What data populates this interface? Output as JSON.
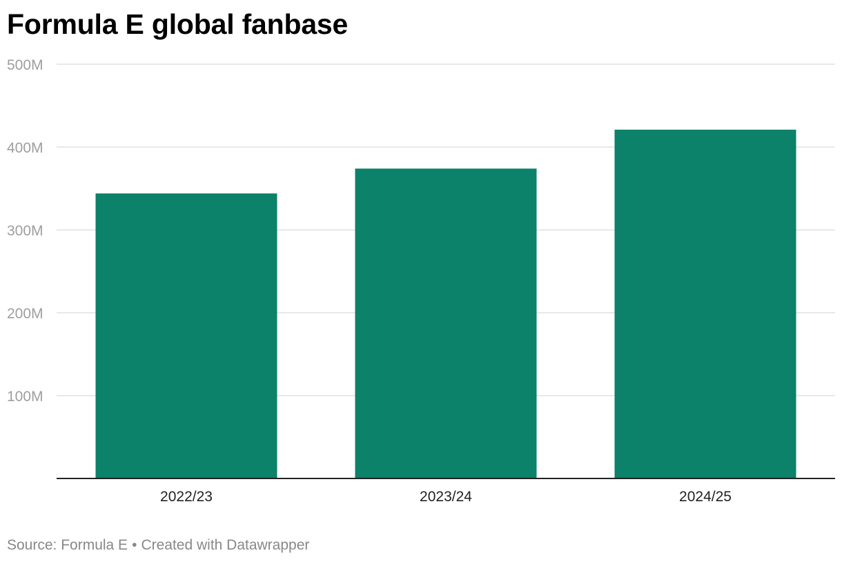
{
  "chart_data": {
    "type": "bar",
    "title": "Formula E global fanbase",
    "categories": [
      "2022/23",
      "2023/24",
      "2024/25"
    ],
    "values": [
      344,
      374,
      421
    ],
    "unit": "M",
    "ylim": [
      0,
      500
    ],
    "yticks": [
      100,
      200,
      300,
      400,
      500
    ],
    "ytick_labels": [
      "100M",
      "200M",
      "300M",
      "400M",
      "500M"
    ],
    "xlabel": "",
    "ylabel": "",
    "grid": true,
    "bar_color": "#0b8269"
  },
  "footer": {
    "source": "Source: Formula E",
    "separator": "•",
    "credit": "Created with Datawrapper"
  }
}
